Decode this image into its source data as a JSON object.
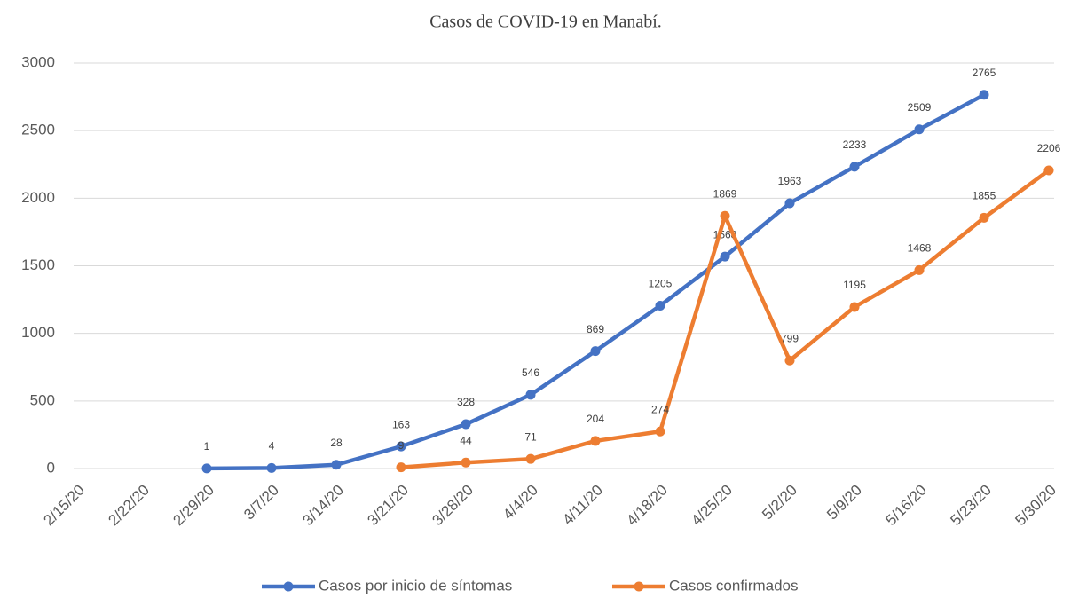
{
  "chart_data": {
    "type": "line",
    "title": "Casos de COVID-19 en Manabí.",
    "categories": [
      "2/15/20",
      "2/22/20",
      "2/29/20",
      "3/7/20",
      "3/14/20",
      "3/21/20",
      "3/28/20",
      "4/4/20",
      "4/11/20",
      "4/18/20",
      "4/25/20",
      "5/2/20",
      "5/9/20",
      "5/16/20",
      "5/23/20",
      "5/30/20"
    ],
    "series": [
      {
        "name": "Casos por inicio de síntomas",
        "color": "#4472c4",
        "values": [
          null,
          null,
          1,
          4,
          28,
          163,
          328,
          546,
          869,
          1205,
          1568,
          1963,
          2233,
          2509,
          2765,
          null
        ]
      },
      {
        "name": "Casos confirmados",
        "color": "#ed7d31",
        "values": [
          null,
          null,
          null,
          null,
          null,
          9,
          44,
          71,
          204,
          274,
          1869,
          799,
          1195,
          1468,
          1855,
          2206
        ]
      }
    ],
    "ylim": [
      0,
      3000
    ],
    "yticks": [
      0,
      500,
      1000,
      1500,
      2000,
      2500,
      3000
    ],
    "grid": true,
    "legend": "bottom"
  }
}
